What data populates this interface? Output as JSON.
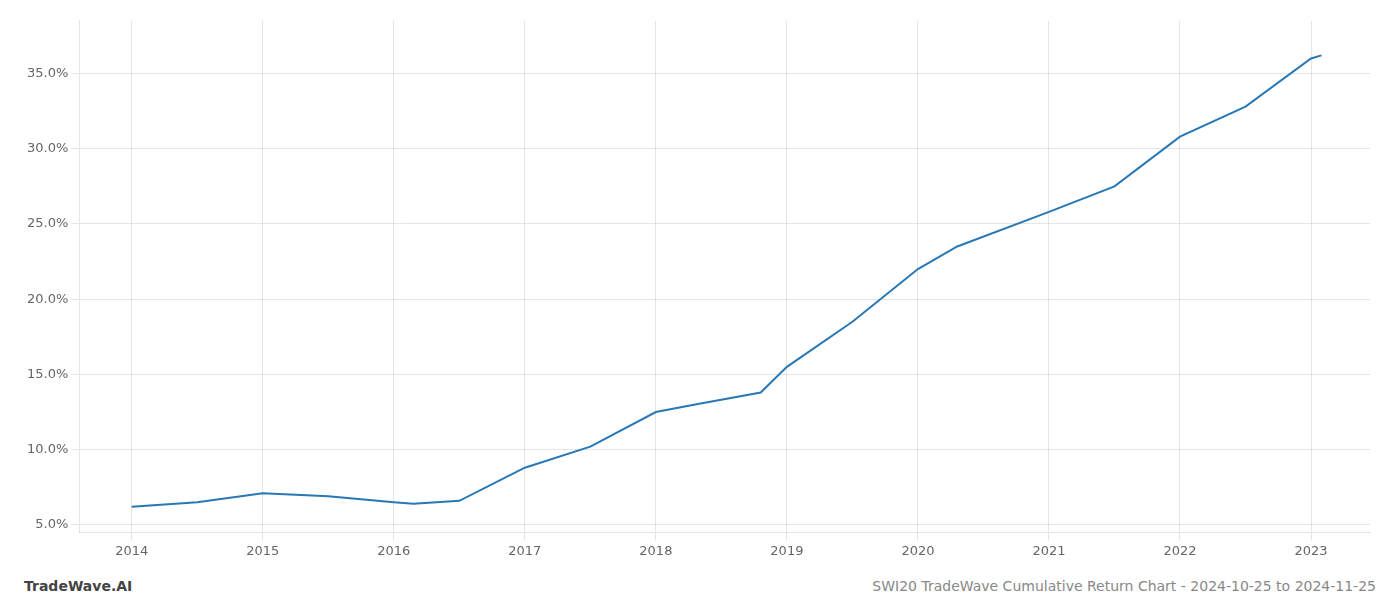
{
  "chart_data": {
    "type": "line",
    "x": [
      2014,
      2014.5,
      2015,
      2015.5,
      2016,
      2016.15,
      2016.5,
      2017,
      2017.5,
      2018,
      2018.3,
      2018.8,
      2019,
      2019.5,
      2020,
      2020.3,
      2021,
      2021.5,
      2022,
      2022.5,
      2023,
      2023.08
    ],
    "values": [
      6.2,
      6.5,
      7.1,
      6.9,
      6.5,
      6.4,
      6.6,
      8.8,
      10.2,
      12.5,
      13.0,
      13.8,
      15.5,
      18.5,
      22.0,
      23.5,
      25.8,
      27.5,
      30.8,
      32.8,
      36.0,
      36.2
    ],
    "color": "#2878b5",
    "xlim": [
      2013.6,
      2023.45
    ],
    "xticks": [
      2014,
      2015,
      2016,
      2017,
      2018,
      2019,
      2020,
      2021,
      2022,
      2023
    ],
    "ylim": [
      4.5,
      38.5
    ],
    "yticks": [
      {
        "value": 5.0,
        "label": "5.0%"
      },
      {
        "value": 10.0,
        "label": "10.0%"
      },
      {
        "value": 15.0,
        "label": "15.0%"
      },
      {
        "value": 20.0,
        "label": "20.0%"
      },
      {
        "value": 25.0,
        "label": "25.0%"
      },
      {
        "value": 30.0,
        "label": "30.0%"
      },
      {
        "value": 35.0,
        "label": "35.0%"
      }
    ],
    "grid": true,
    "annotations": [
      "TradeWave.AI",
      "SWI20 TradeWave Cumulative Return Chart - 2024-10-25 to 2024-11-25"
    ]
  }
}
